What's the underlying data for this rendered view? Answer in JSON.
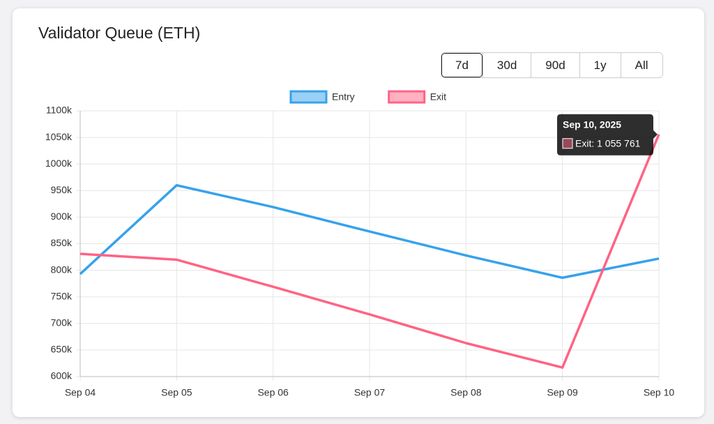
{
  "header": {
    "title": "Validator Queue (ETH)"
  },
  "controls": {
    "ranges": [
      "7d",
      "30d",
      "90d",
      "1y",
      "All"
    ],
    "selected": 0
  },
  "chart_data": {
    "type": "line",
    "categories": [
      "Sep 04",
      "Sep 05",
      "Sep 06",
      "Sep 07",
      "Sep 08",
      "Sep 09",
      "Sep 10"
    ],
    "series": [
      {
        "name": "Entry",
        "color": "#36a2eb",
        "values": [
          793000,
          960000,
          919000,
          873000,
          828000,
          786000,
          822000
        ]
      },
      {
        "name": "Exit",
        "color": "#ff6384",
        "values": [
          831000,
          820000,
          769000,
          717000,
          663000,
          617000,
          1055761
        ]
      }
    ],
    "ylim": [
      600000,
      1100000
    ],
    "yticks": [
      {
        "value": 600000,
        "label": "600k"
      },
      {
        "value": 650000,
        "label": "650k"
      },
      {
        "value": 700000,
        "label": "700k"
      },
      {
        "value": 750000,
        "label": "750k"
      },
      {
        "value": 800000,
        "label": "800k"
      },
      {
        "value": 850000,
        "label": "850k"
      },
      {
        "value": 900000,
        "label": "900k"
      },
      {
        "value": 950000,
        "label": "950k"
      },
      {
        "value": 1000000,
        "label": "1000k"
      },
      {
        "value": 1050000,
        "label": "1050k"
      },
      {
        "value": 1100000,
        "label": "1100k"
      }
    ],
    "grid": true,
    "legend": "top",
    "tooltip": {
      "title": "Sep 10, 2025",
      "label": "Exit: 1 055 761",
      "series": 1,
      "index": 6
    }
  }
}
